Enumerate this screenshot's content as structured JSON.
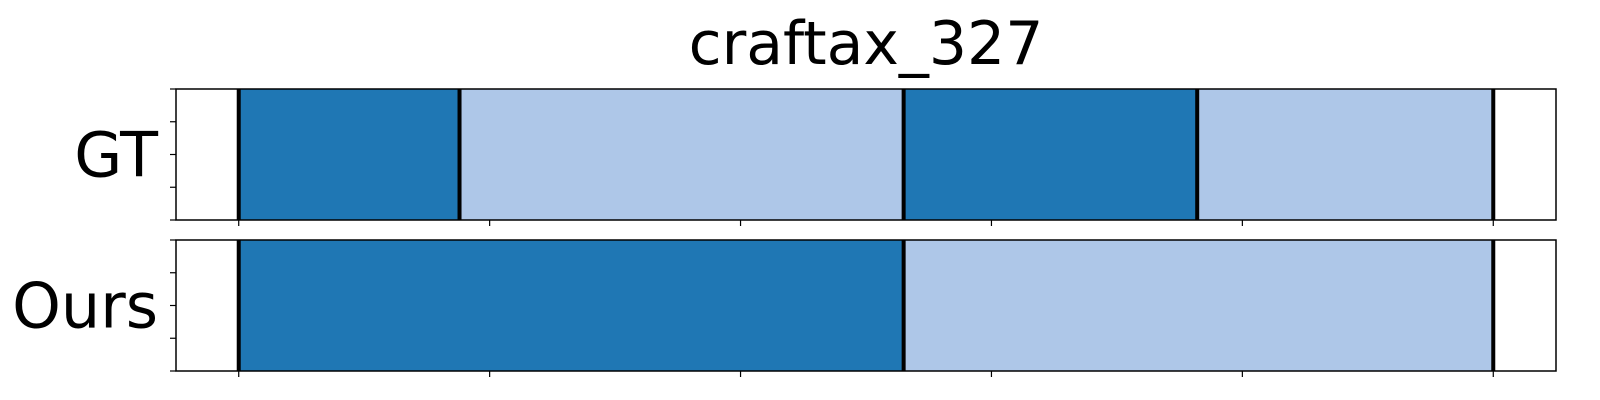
{
  "chart_data": {
    "type": "bar",
    "orientation": "horizontal-stacked-segments",
    "title": "craftax_327",
    "x_range": [
      -25,
      525
    ],
    "x_ticks": [
      0,
      100,
      200,
      300,
      400,
      500
    ],
    "tick_labels_visible": false,
    "grid": false,
    "legend": "none",
    "colors": {
      "dark": "#1f77b4",
      "light": "#aec7e8",
      "boundary": "#000000"
    },
    "rows": [
      {
        "label": "GT",
        "segments": [
          {
            "start": 0,
            "end": 88,
            "color": "#1f77b4"
          },
          {
            "start": 88,
            "end": 265,
            "color": "#aec7e8"
          },
          {
            "start": 265,
            "end": 382,
            "color": "#1f77b4"
          },
          {
            "start": 382,
            "end": 500,
            "color": "#aec7e8"
          }
        ],
        "boundaries": [
          0,
          88,
          265,
          382,
          500
        ]
      },
      {
        "label": "Ours",
        "segments": [
          {
            "start": 0,
            "end": 265,
            "color": "#1f77b4"
          },
          {
            "start": 265,
            "end": 500,
            "color": "#aec7e8"
          }
        ],
        "boundaries": [
          0,
          265,
          500
        ]
      }
    ]
  }
}
